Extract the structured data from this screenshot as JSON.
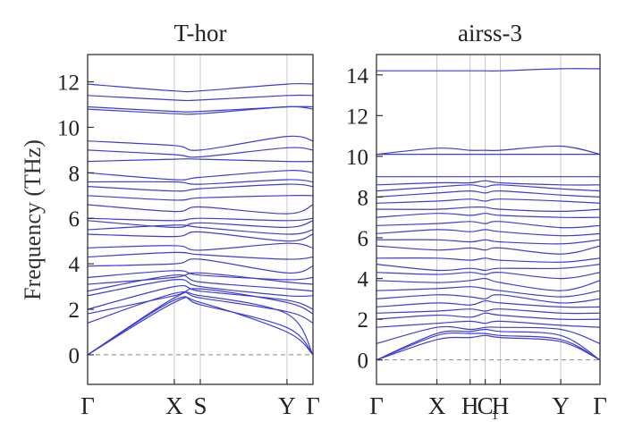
{
  "chart_data": [
    {
      "type": "line",
      "title": "T-hor",
      "ylabel": "Frequency (THz)",
      "ylim": [
        -1.3,
        13.2
      ],
      "yticks": [
        "0",
        "2",
        "4",
        "6",
        "8",
        "10",
        "12"
      ],
      "x_positions": [
        0,
        1,
        1.3,
        2.3,
        2.6
      ],
      "xtick_labels": [
        "Γ",
        "X",
        "S",
        "Y",
        "Γ"
      ],
      "kpath_lines": [
        1,
        1.3,
        2.3
      ],
      "zero_line": true,
      "line_color": "#3d3dd6",
      "series": [
        {
          "values": [
            0,
            2.3,
            2.3,
            1.0,
            0
          ]
        },
        {
          "values": [
            0,
            2.4,
            2.2,
            1.2,
            0
          ]
        },
        {
          "values": [
            0,
            2.5,
            2.6,
            1.8,
            0
          ]
        },
        {
          "values": [
            1.4,
            2.7,
            2.5,
            1.9,
            1.4
          ]
        },
        {
          "values": [
            1.8,
            2.6,
            2.9,
            2.3,
            1.8
          ]
        },
        {
          "values": [
            2.0,
            3.0,
            2.8,
            2.4,
            2.0
          ]
        },
        {
          "values": [
            2.6,
            3.3,
            3.0,
            2.6,
            2.6
          ]
        },
        {
          "values": [
            2.8,
            3.5,
            3.2,
            2.9,
            2.8
          ]
        },
        {
          "values": [
            3.1,
            3.4,
            3.6,
            3.2,
            3.1
          ]
        },
        {
          "values": [
            3.4,
            3.7,
            3.5,
            3.3,
            3.4
          ]
        },
        {
          "values": [
            3.9,
            4.0,
            4.2,
            3.6,
            3.9
          ]
        },
        {
          "values": [
            4.3,
            4.5,
            4.4,
            4.2,
            4.3
          ]
        },
        {
          "values": [
            4.7,
            4.8,
            4.6,
            4.9,
            4.7
          ]
        },
        {
          "values": [
            5.3,
            5.2,
            5.4,
            5.0,
            5.3
          ]
        },
        {
          "values": [
            5.5,
            5.7,
            5.6,
            5.3,
            5.5
          ]
        },
        {
          "values": [
            5.9,
            5.6,
            5.8,
            5.6,
            5.9
          ]
        },
        {
          "values": [
            6.0,
            5.9,
            6.0,
            5.9,
            6.0
          ]
        },
        {
          "values": [
            6.6,
            6.3,
            6.5,
            6.2,
            6.6
          ]
        },
        {
          "values": [
            7.0,
            6.8,
            6.9,
            7.0,
            7.0
          ]
        },
        {
          "values": [
            7.4,
            7.2,
            7.3,
            7.5,
            7.4
          ]
        },
        {
          "values": [
            7.6,
            7.6,
            7.5,
            7.7,
            7.6
          ]
        },
        {
          "values": [
            8.0,
            7.7,
            7.8,
            8.1,
            8.0
          ]
        },
        {
          "values": [
            8.5,
            8.6,
            8.6,
            8.5,
            8.5
          ]
        },
        {
          "values": [
            9.0,
            8.8,
            8.7,
            9.1,
            9.0
          ]
        },
        {
          "values": [
            9.4,
            9.2,
            9.0,
            9.6,
            9.4
          ]
        },
        {
          "values": [
            10.8,
            10.6,
            10.6,
            10.9,
            10.8
          ]
        },
        {
          "values": [
            10.9,
            10.7,
            10.7,
            10.9,
            10.9
          ]
        },
        {
          "values": [
            11.4,
            11.2,
            11.2,
            11.4,
            11.4
          ]
        },
        {
          "values": [
            11.9,
            11.6,
            11.6,
            11.9,
            11.9
          ]
        }
      ]
    },
    {
      "type": "line",
      "title": "airss-3",
      "ylim": [
        -1.2,
        15.0
      ],
      "yticks": [
        "0",
        "2",
        "4",
        "6",
        "8",
        "10",
        "12",
        "14"
      ],
      "x_positions": [
        0,
        1,
        1.55,
        1.8,
        2.05,
        3.05,
        3.7
      ],
      "xtick_labels": [
        "Γ",
        "X",
        "H",
        "C",
        "H",
        "Y",
        "Γ"
      ],
      "xtick_subscripts": [
        "",
        "",
        "",
        "1",
        "",
        "",
        ""
      ],
      "kpath_lines": [
        1,
        1.55,
        1.8,
        2.05,
        3.05
      ],
      "zero_line": true,
      "line_color": "#3d3dd6",
      "series": [
        {
          "values": [
            0,
            1.0,
            1.1,
            1.2,
            1.1,
            0.9,
            0
          ]
        },
        {
          "values": [
            0,
            1.2,
            1.3,
            1.3,
            1.2,
            1.0,
            0
          ]
        },
        {
          "values": [
            0,
            1.3,
            1.4,
            1.5,
            1.4,
            1.2,
            0
          ]
        },
        {
          "values": [
            0.8,
            1.6,
            1.5,
            1.6,
            1.6,
            1.5,
            0.8
          ]
        },
        {
          "values": [
            1.6,
            1.8,
            1.9,
            1.8,
            1.9,
            1.7,
            1.6
          ]
        },
        {
          "values": [
            2.0,
            2.2,
            2.1,
            2.3,
            2.2,
            2.0,
            2.0
          ]
        },
        {
          "values": [
            2.3,
            2.4,
            2.5,
            2.4,
            2.5,
            2.3,
            2.3
          ]
        },
        {
          "values": [
            2.6,
            2.8,
            2.7,
            2.9,
            2.8,
            2.6,
            2.6
          ]
        },
        {
          "values": [
            3.0,
            3.2,
            3.1,
            3.0,
            3.2,
            2.8,
            3.0
          ]
        },
        {
          "values": [
            3.4,
            3.5,
            3.6,
            3.5,
            3.4,
            3.1,
            3.4
          ]
        },
        {
          "values": [
            3.9,
            3.8,
            3.9,
            4.0,
            3.8,
            3.4,
            3.9
          ]
        },
        {
          "values": [
            4.3,
            4.2,
            4.3,
            4.2,
            4.3,
            4.0,
            4.3
          ]
        },
        {
          "values": [
            4.7,
            4.4,
            4.5,
            4.4,
            4.5,
            4.5,
            4.7
          ]
        },
        {
          "values": [
            5.0,
            5.0,
            4.9,
            5.0,
            4.9,
            4.8,
            5.0
          ]
        },
        {
          "values": [
            5.6,
            5.4,
            5.5,
            5.4,
            5.5,
            5.2,
            5.6
          ]
        },
        {
          "values": [
            5.9,
            5.9,
            5.8,
            5.9,
            5.8,
            5.7,
            5.9
          ]
        },
        {
          "values": [
            6.2,
            6.4,
            6.3,
            6.4,
            6.3,
            6.1,
            6.2
          ]
        },
        {
          "values": [
            6.6,
            6.7,
            6.8,
            6.7,
            6.8,
            6.5,
            6.6
          ]
        },
        {
          "values": [
            7.0,
            7.2,
            7.1,
            7.2,
            7.1,
            7.0,
            7.0
          ]
        },
        {
          "values": [
            7.4,
            7.4,
            7.5,
            7.5,
            7.4,
            7.3,
            7.4
          ]
        },
        {
          "values": [
            7.7,
            7.8,
            7.9,
            7.8,
            7.9,
            7.8,
            7.7
          ]
        },
        {
          "values": [
            8.0,
            8.2,
            8.3,
            8.2,
            8.3,
            8.1,
            8.0
          ]
        },
        {
          "values": [
            8.3,
            8.5,
            8.6,
            8.5,
            8.6,
            8.4,
            8.3
          ]
        },
        {
          "values": [
            8.6,
            8.7,
            8.7,
            8.8,
            8.7,
            8.6,
            8.6
          ]
        },
        {
          "values": [
            9.0,
            9.0,
            9.0,
            9.0,
            9.0,
            9.0,
            9.0
          ]
        },
        {
          "values": [
            10.1,
            10.4,
            10.3,
            10.3,
            10.3,
            10.5,
            10.1
          ]
        },
        {
          "values": [
            10.1,
            10.1,
            10.1,
            10.1,
            10.1,
            10.1,
            10.1
          ]
        },
        {
          "values": [
            14.2,
            14.2,
            14.2,
            14.2,
            14.2,
            14.3,
            14.3
          ]
        }
      ]
    }
  ]
}
